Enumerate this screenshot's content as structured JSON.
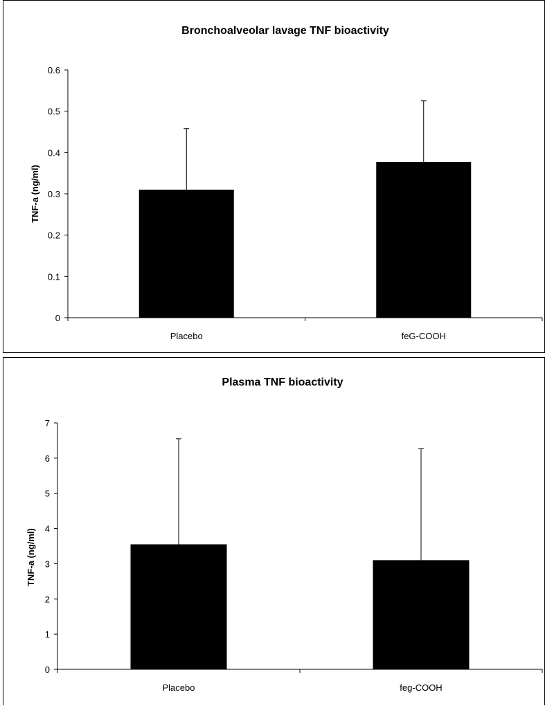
{
  "chart_data": [
    {
      "type": "bar",
      "title": "Bronchoalveolar lavage TNF bioactivity",
      "ylabel": "TNF-a (ng/ml)",
      "categories": [
        "Placebo",
        "feG-COOH"
      ],
      "values": [
        0.31,
        0.377
      ],
      "error_upper": [
        0.148,
        0.148
      ],
      "ylim": [
        0,
        0.6
      ],
      "yticks": [
        "0",
        "0.1",
        "0.2",
        "0.3",
        "0.4",
        "0.5",
        "0.6"
      ],
      "ytick_values": [
        0,
        0.1,
        0.2,
        0.3,
        0.4,
        0.5,
        0.6
      ],
      "bar_color": "#000000",
      "grid": false
    },
    {
      "type": "bar",
      "title": "Plasma TNF bioactivity",
      "ylabel": "TNF-a (ng/ml)",
      "categories": [
        "Placebo",
        "feg-COOH"
      ],
      "values": [
        3.55,
        3.1
      ],
      "error_upper": [
        3.0,
        3.17
      ],
      "ylim": [
        0,
        7
      ],
      "yticks": [
        "0",
        "1",
        "2",
        "3",
        "4",
        "5",
        "6",
        "7"
      ],
      "ytick_values": [
        0,
        1,
        2,
        3,
        4,
        5,
        6,
        7
      ],
      "bar_color": "#000000",
      "grid": false
    }
  ]
}
